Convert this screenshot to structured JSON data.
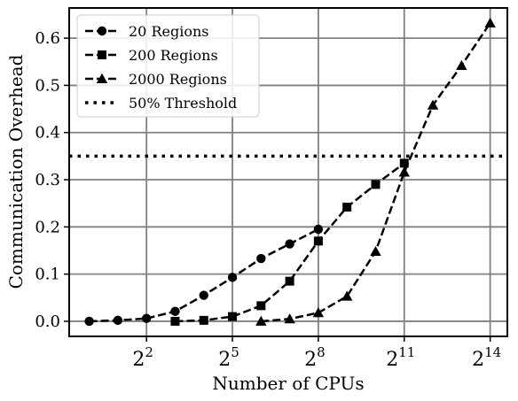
{
  "chart_data": {
    "type": "line",
    "xlabel": "Number of CPUs",
    "ylabel": "Communication Overhead",
    "x_scale": "log2",
    "x_ticks": [
      2,
      5,
      8,
      11,
      14
    ],
    "x_tick_base": "2",
    "xlim_log2": [
      -0.7,
      14.6
    ],
    "y_ticks": [
      "0.0",
      "0.1",
      "0.2",
      "0.3",
      "0.4",
      "0.5",
      "0.6"
    ],
    "ylim": [
      -0.032,
      0.664
    ],
    "grid": true,
    "legend_position": "top-left",
    "series": [
      {
        "name": "20 Regions",
        "marker": "circle",
        "style": "dashed",
        "x_log2": [
          0,
          1,
          2,
          3,
          4,
          5,
          6,
          7,
          8
        ],
        "y": [
          0.0,
          0.002,
          0.006,
          0.021,
          0.055,
          0.093,
          0.133,
          0.164,
          0.195
        ]
      },
      {
        "name": "200 Regions",
        "marker": "square",
        "style": "dashed",
        "x_log2": [
          3,
          4,
          5,
          6,
          7,
          8,
          9,
          10,
          11
        ],
        "y": [
          0.0,
          0.002,
          0.01,
          0.033,
          0.085,
          0.17,
          0.242,
          0.29,
          0.335
        ]
      },
      {
        "name": "2000 Regions",
        "marker": "triangle",
        "style": "dashed",
        "x_log2": [
          6,
          7,
          8,
          9,
          10,
          11,
          12,
          13,
          14
        ],
        "y": [
          0.0,
          0.005,
          0.018,
          0.053,
          0.148,
          0.316,
          0.458,
          0.542,
          0.632
        ]
      }
    ],
    "threshold": {
      "name": "50% Threshold",
      "style": "dotted",
      "y": 0.35
    }
  }
}
